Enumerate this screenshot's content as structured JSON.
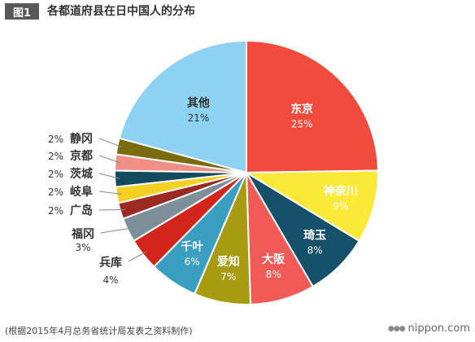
{
  "figure_tag": "图1",
  "chart_data": {
    "type": "pie",
    "title": "各都道府县在日中国人的分布",
    "slices": [
      {
        "label": "东京",
        "value": 25,
        "pct_label": "25%",
        "color": "#f04b3c",
        "label_placement": "inside",
        "text_color": "#ffffff"
      },
      {
        "label": "神奈川",
        "value": 9,
        "pct_label": "9%",
        "color": "#fbe93a",
        "label_placement": "inside",
        "text_color": "#ffffff"
      },
      {
        "label": "琦玉",
        "value": 8,
        "pct_label": "8%",
        "color": "#17506a",
        "label_placement": "inside",
        "text_color": "#ffffff"
      },
      {
        "label": "大阪",
        "value": 8,
        "pct_label": "8%",
        "color": "#f25a57",
        "label_placement": "inside",
        "text_color": "#ffffff"
      },
      {
        "label": "爱知",
        "value": 7,
        "pct_label": "7%",
        "color": "#a79b12",
        "label_placement": "inside",
        "text_color": "#ffffff"
      },
      {
        "label": "千叶",
        "value": 6,
        "pct_label": "6%",
        "color": "#3a9ec0",
        "label_placement": "inside",
        "text_color": "#ffffff"
      },
      {
        "label": "兵库",
        "value": 4,
        "pct_label": "4%",
        "color": "#d4251c",
        "label_placement": "outside-stacked",
        "text_color": "#333333"
      },
      {
        "label": "福冈",
        "value": 3,
        "pct_label": "3%",
        "color": "#7d8f98",
        "label_placement": "outside-stacked",
        "text_color": "#333333"
      },
      {
        "label": "广岛",
        "value": 2,
        "pct_label": "2%",
        "color": "#9c2a22",
        "label_placement": "outside-inline",
        "text_color": "#333333"
      },
      {
        "label": "岐阜",
        "value": 2,
        "pct_label": "2%",
        "color": "#f4d022",
        "label_placement": "outside-inline",
        "text_color": "#333333"
      },
      {
        "label": "茨城",
        "value": 2,
        "pct_label": "2%",
        "color": "#134a5e",
        "label_placement": "outside-inline",
        "text_color": "#333333"
      },
      {
        "label": "京都",
        "value": 2,
        "pct_label": "2%",
        "color": "#ef8f86",
        "label_placement": "outside-inline",
        "text_color": "#333333"
      },
      {
        "label": "静冈",
        "value": 2,
        "pct_label": "2%",
        "color": "#7a6c0e",
        "label_placement": "outside-inline",
        "text_color": "#333333"
      },
      {
        "label": "其他",
        "value": 21,
        "pct_label": "21%",
        "color": "#8dd3f1",
        "label_placement": "inside",
        "text_color": "#333333"
      }
    ],
    "start": "12 o'clock",
    "direction": "clockwise",
    "legend": "none"
  },
  "source_note": "(根据2015年4月总务省统计局发表之资料制作)",
  "brand": {
    "text": "nippon.com",
    "icon": "nippon-dots-icon"
  }
}
